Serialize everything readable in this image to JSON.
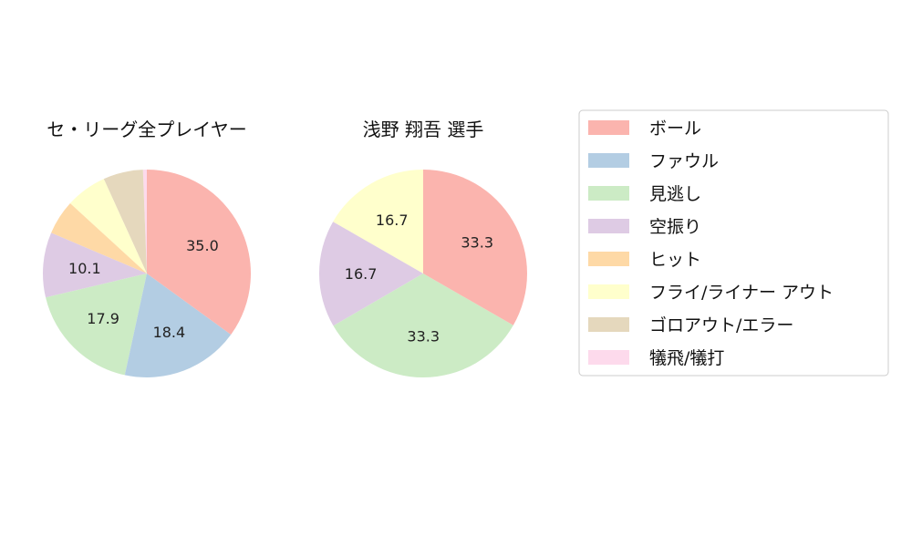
{
  "chart_data": [
    {
      "type": "pie",
      "title": "セ・リーグ全プレイヤー",
      "categories": [
        "ボール",
        "ファウル",
        "見逃し",
        "空振り",
        "ヒット",
        "フライ/ライナー アウト",
        "ゴロアウト/エラー",
        "犠飛/犠打"
      ],
      "values": [
        35.0,
        18.4,
        17.9,
        10.1,
        5.4,
        6.4,
        6.2,
        0.6
      ],
      "labels_shown": [
        "35.0",
        "18.4",
        "17.9",
        "10.1",
        "",
        "",
        "",
        ""
      ]
    },
    {
      "type": "pie",
      "title": "浅野 翔吾  選手",
      "categories": [
        "ボール",
        "ファウル",
        "見逃し",
        "空振り",
        "ヒット",
        "フライ/ライナー アウト",
        "ゴロアウト/エラー",
        "犠飛/犠打"
      ],
      "values": [
        33.3,
        0,
        33.3,
        16.7,
        0,
        16.7,
        0,
        0
      ],
      "labels_shown": [
        "33.3",
        "",
        "33.3",
        "16.7",
        "",
        "16.7",
        "",
        ""
      ]
    }
  ],
  "legend": {
    "placement": "right",
    "items": [
      {
        "label": "ボール",
        "color": "#fbb4ae"
      },
      {
        "label": "ファウル",
        "color": "#b3cde3"
      },
      {
        "label": "見逃し",
        "color": "#ccebc5"
      },
      {
        "label": "空振り",
        "color": "#decbe4"
      },
      {
        "label": "ヒット",
        "color": "#fed9a6"
      },
      {
        "label": "フライ/ライナー アウト",
        "color": "#ffffcc"
      },
      {
        "label": "ゴロアウト/エラー",
        "color": "#e5d8bd"
      },
      {
        "label": "犠飛/犠打",
        "color": "#fddaec"
      }
    ]
  }
}
